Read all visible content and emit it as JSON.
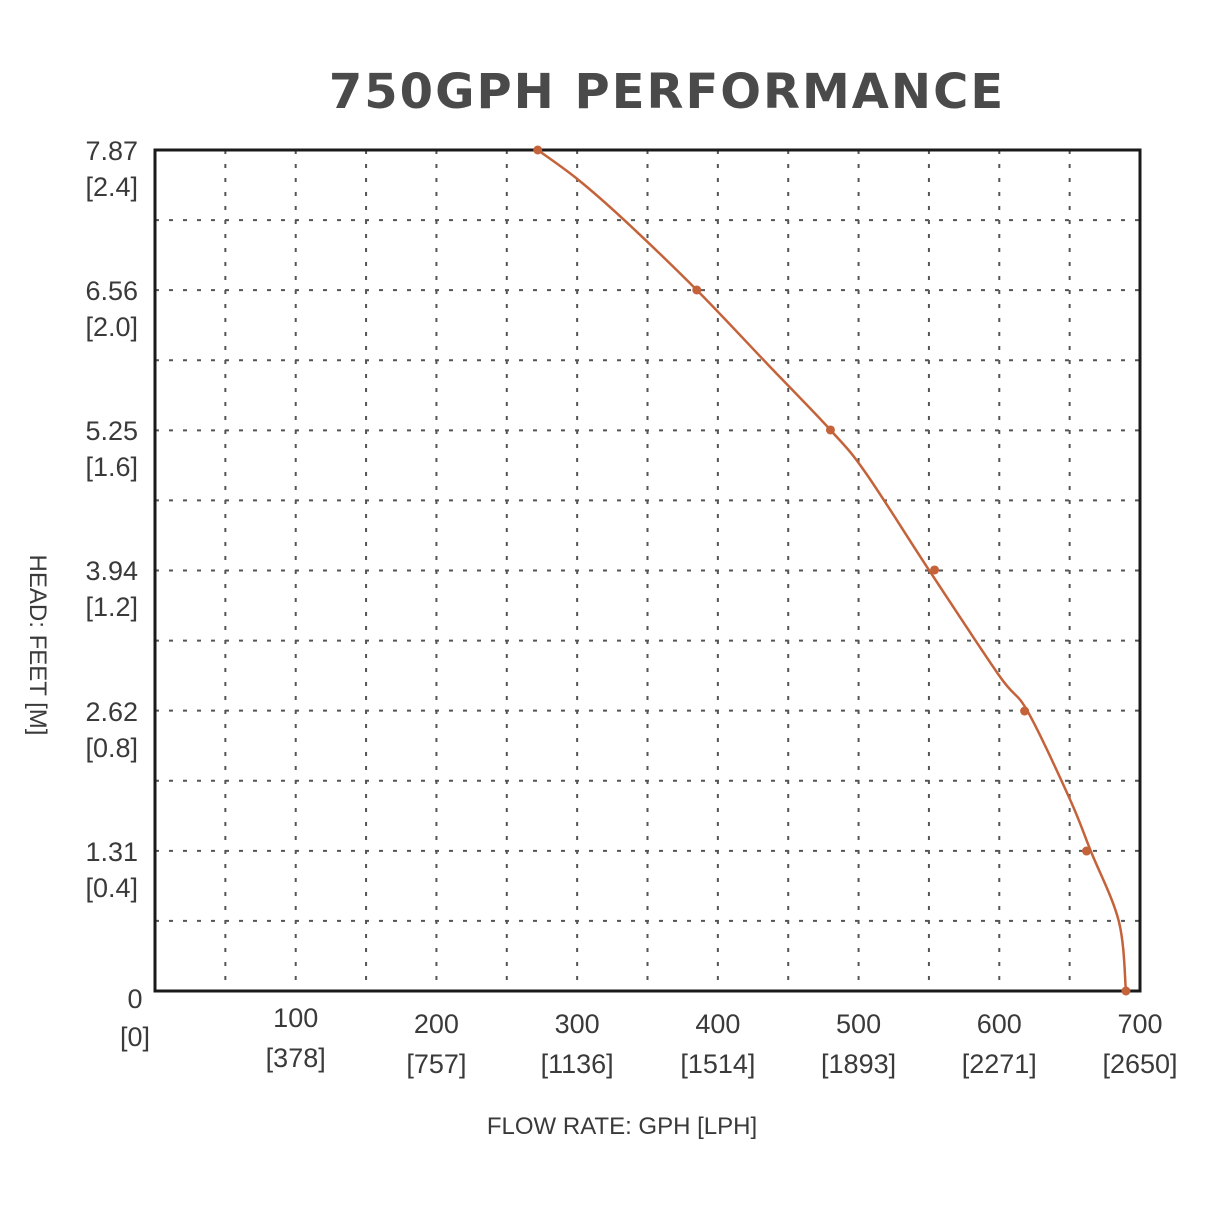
{
  "chart_data": {
    "type": "line",
    "title": "750GPH PERFORMANCE",
    "xlabel": "FLOW RATE: GPH [LPH]",
    "ylabel": "HEAD: FEET [M]",
    "xlim": [
      0,
      700
    ],
    "ylim": [
      0,
      7.87
    ],
    "grid": true,
    "x_ticks": [
      {
        "value": 0,
        "label": "0",
        "sublabel": "[0]"
      },
      {
        "value": 100,
        "label": "100",
        "sublabel": "[378]"
      },
      {
        "value": 200,
        "label": "200",
        "sublabel": "[757]"
      },
      {
        "value": 300,
        "label": "300",
        "sublabel": "[1136]"
      },
      {
        "value": 400,
        "label": "400",
        "sublabel": "[1514]"
      },
      {
        "value": 500,
        "label": "500",
        "sublabel": "[1893]"
      },
      {
        "value": 600,
        "label": "600",
        "sublabel": "[2271]"
      },
      {
        "value": 700,
        "label": "700",
        "sublabel": "[2650]"
      }
    ],
    "y_ticks": [
      {
        "value": 7.87,
        "label": "7.87",
        "sublabel": "[2.4]"
      },
      {
        "value": 6.56,
        "label": "6.56",
        "sublabel": "[2.0]"
      },
      {
        "value": 5.25,
        "label": "5.25",
        "sublabel": "[1.6]"
      },
      {
        "value": 3.94,
        "label": "3.94",
        "sublabel": "[1.2]"
      },
      {
        "value": 2.62,
        "label": "2.62",
        "sublabel": "[0.8]"
      },
      {
        "value": 1.31,
        "label": "1.31",
        "sublabel": "[0.4]"
      },
      {
        "value": 0,
        "label": "0",
        "sublabel": ""
      }
    ],
    "series": [
      {
        "color": "#c4623a",
        "x": [
          272,
          300,
          333,
          385,
          435,
          480,
          505,
          550,
          600,
          620,
          650,
          665,
          685,
          690
        ],
        "y": [
          7.87,
          7.6,
          7.22,
          6.56,
          5.87,
          5.25,
          4.85,
          3.94,
          2.95,
          2.62,
          1.8,
          1.31,
          0.65,
          0.0
        ],
        "markers": [
          {
            "x": 272,
            "y": 7.87
          },
          {
            "x": 385,
            "y": 6.56
          },
          {
            "x": 480,
            "y": 5.25
          },
          {
            "x": 554,
            "y": 3.94
          },
          {
            "x": 618,
            "y": 2.62
          },
          {
            "x": 662,
            "y": 1.31
          },
          {
            "x": 690,
            "y": 0.0
          }
        ]
      }
    ],
    "colors": {
      "axis": "#1a1a1a",
      "grid": "#555555",
      "curve": "#c4623a",
      "text": "#3a3a3a"
    }
  }
}
